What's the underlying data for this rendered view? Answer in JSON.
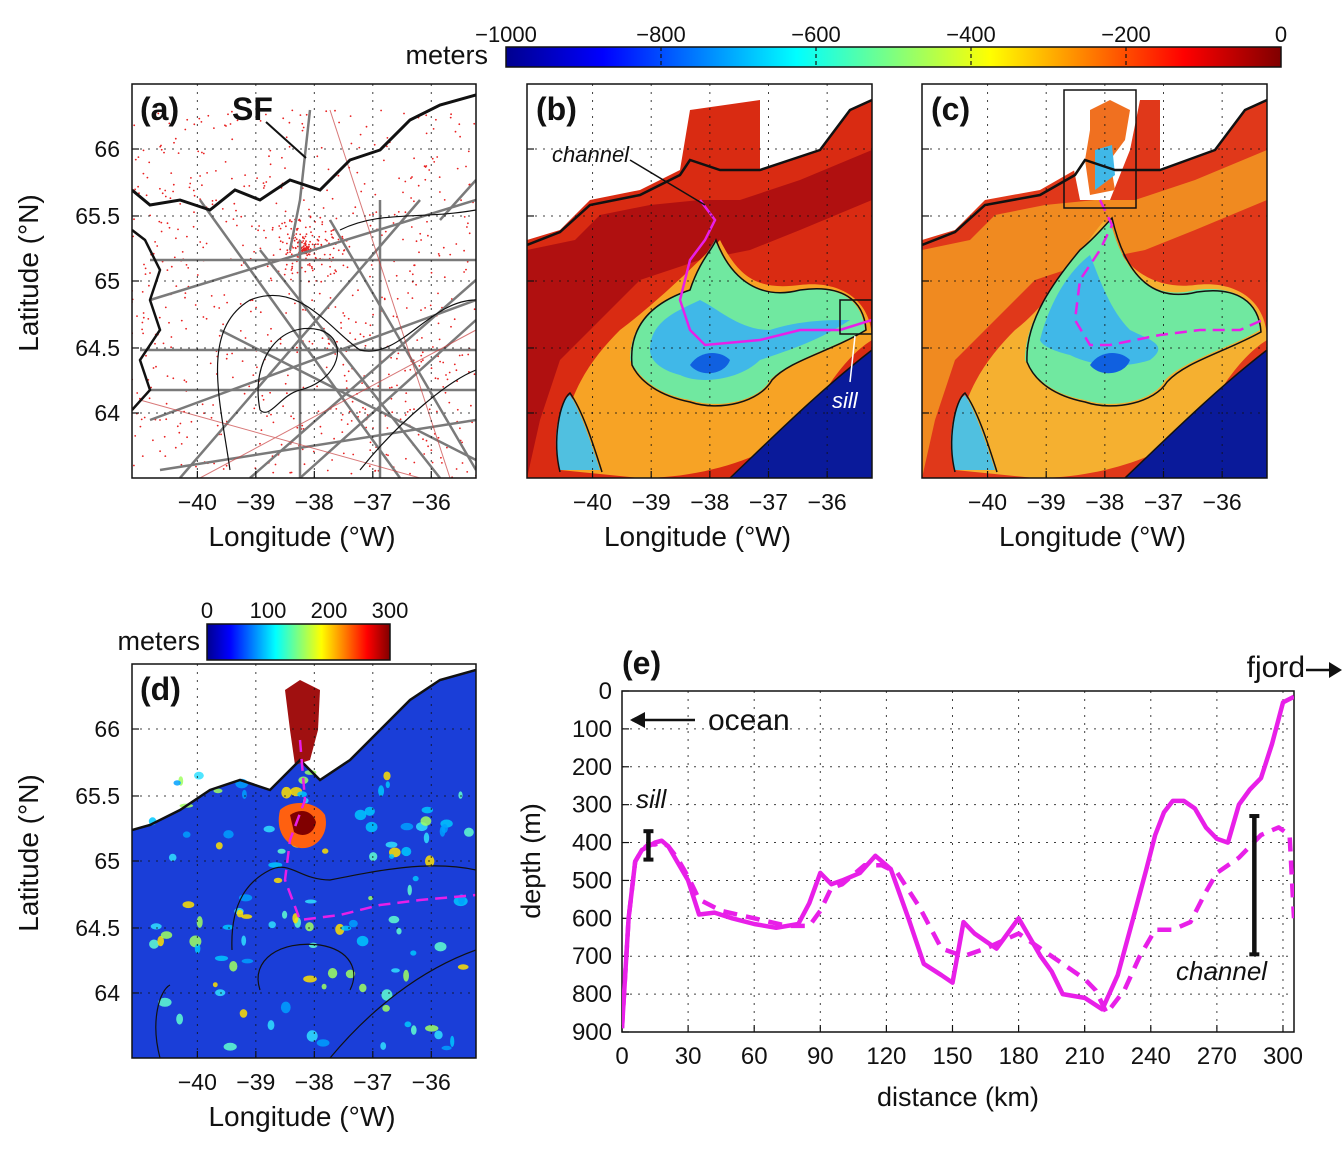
{
  "colorbar_top": {
    "unit": "meters",
    "range": [
      -1000,
      0
    ],
    "ticks": [
      "−1000",
      "−800",
      "−600",
      "−400",
      "−200",
      "0"
    ],
    "colormap": "jet"
  },
  "colorbar_bottom": {
    "unit": "meters",
    "range": [
      0,
      300
    ],
    "ticks": [
      "0",
      "100",
      "200",
      "300"
    ],
    "colormap": "jet"
  },
  "maps": {
    "xlabel": "Longitude (°W)",
    "ylabel": "Latitude (°N)",
    "lon_ticks": [
      "−40",
      "−39",
      "−38",
      "−37",
      "−36"
    ],
    "lat_ticks": [
      "66",
      "65.5",
      "65",
      "64.5",
      "64"
    ],
    "panel_a": {
      "label": "(a)",
      "annotation": "SF"
    },
    "panel_b": {
      "label": "(b)",
      "channel_label": "channel",
      "sill_label": "sill"
    },
    "panel_c": {
      "label": "(c)"
    },
    "panel_d": {
      "label": "(d)"
    }
  },
  "chart_data": {
    "type": "line",
    "panel_label": "(e)",
    "xlabel": "distance (km)",
    "ylabel": "depth (m)",
    "xlim": [
      0,
      305
    ],
    "ylim": [
      900,
      0
    ],
    "x_ticks": [
      "0",
      "30",
      "60",
      "90",
      "120",
      "150",
      "180",
      "210",
      "240",
      "270",
      "300"
    ],
    "y_ticks": [
      "0",
      "100",
      "200",
      "300",
      "400",
      "500",
      "600",
      "700",
      "800",
      "900"
    ],
    "annotations": {
      "ocean": "ocean",
      "fjord": "fjord",
      "sill": "sill",
      "channel": "channel"
    },
    "color": "#e81fe8",
    "series": [
      {
        "name": "solid",
        "style": "solid",
        "x": [
          0,
          3,
          6,
          9,
          12,
          15,
          18,
          21,
          25,
          30,
          35,
          42,
          50,
          60,
          70,
          80,
          85,
          90,
          95,
          100,
          108,
          115,
          122,
          130,
          137,
          145,
          150,
          155,
          160,
          165,
          170,
          175,
          180,
          185,
          190,
          195,
          200,
          210,
          218,
          225,
          232,
          238,
          242,
          246,
          250,
          255,
          260,
          265,
          270,
          275,
          280,
          285,
          290,
          295,
          300,
          305
        ],
        "y": [
          890,
          600,
          450,
          420,
          410,
          400,
          395,
          410,
          450,
          500,
          590,
          585,
          600,
          615,
          625,
          615,
          560,
          480,
          510,
          500,
          480,
          435,
          470,
          600,
          720,
          750,
          770,
          610,
          640,
          660,
          680,
          640,
          600,
          650,
          700,
          740,
          800,
          810,
          840,
          750,
          600,
          470,
          380,
          320,
          290,
          290,
          310,
          360,
          390,
          400,
          300,
          260,
          230,
          140,
          30,
          15
        ]
      },
      {
        "name": "dashed",
        "style": "dashed",
        "x": [
          0,
          3,
          6,
          9,
          12,
          15,
          18,
          21,
          25,
          30,
          35,
          45,
          60,
          75,
          85,
          90,
          95,
          100,
          110,
          118,
          125,
          135,
          145,
          155,
          165,
          180,
          200,
          210,
          215,
          220,
          228,
          235,
          242,
          250,
          258,
          265,
          270,
          280,
          290,
          298,
          303,
          305
        ],
        "y": [
          890,
          600,
          450,
          420,
          405,
          405,
          400,
          410,
          440,
          490,
          550,
          580,
          600,
          620,
          620,
          580,
          520,
          510,
          460,
          460,
          480,
          570,
          680,
          700,
          680,
          640,
          720,
          760,
          790,
          850,
          790,
          700,
          630,
          630,
          610,
          530,
          480,
          440,
          380,
          360,
          380,
          600
        ]
      }
    ],
    "markers": [
      {
        "name": "sill",
        "x": 12,
        "y_top": 370,
        "y_bottom": 445
      },
      {
        "name": "channel",
        "x": 287,
        "y_top": 330,
        "y_bottom": 695
      }
    ]
  }
}
